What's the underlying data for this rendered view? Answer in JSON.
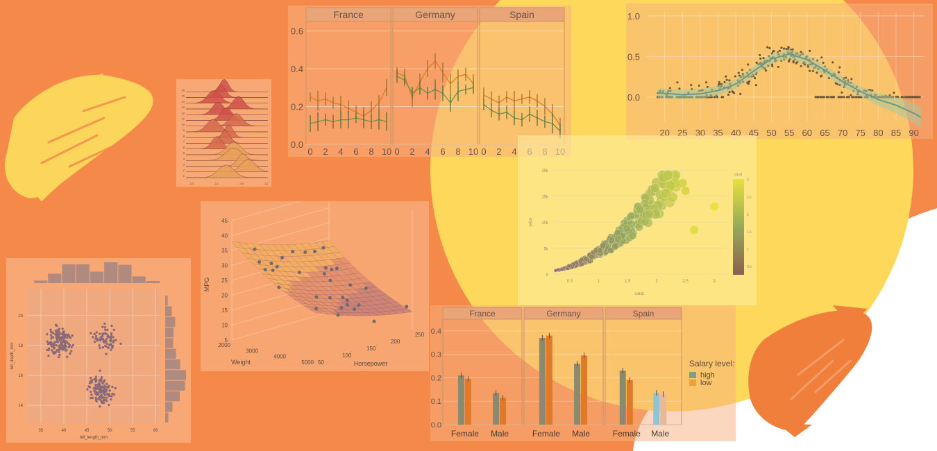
{
  "colors": {
    "background": "#f5894a",
    "big_circle": "#fdd85a",
    "white_corner": "#ffffff",
    "brush_yellow": "#fbd65a",
    "brush_orange": "#ef7f3a",
    "panel_tint": "#f9b98c",
    "green": "#6e8f4a",
    "orange_line": "#e07a28",
    "gray_point": "#6f6a66"
  },
  "chart_data": [
    {
      "id": "line_panels",
      "type": "line",
      "facets": [
        "France",
        "Germany",
        "Spain"
      ],
      "x_ticks": [
        0,
        2,
        4,
        6,
        8,
        10
      ],
      "y_ticks": [
        "0.0",
        "0.2",
        "0.4",
        "0.6"
      ],
      "ylim": [
        0,
        0.65
      ],
      "series": [
        {
          "color": "orange",
          "values": [
            [
              0.25,
              0.23,
              0.24,
              0.22,
              0.21,
              0.19,
              0.17,
              0.15,
              0.18,
              0.22,
              0.3
            ],
            [
              0.38,
              0.36,
              0.25,
              0.33,
              0.4,
              0.44,
              0.38,
              0.32,
              0.36,
              0.37,
              0.32
            ],
            [
              0.26,
              0.24,
              0.22,
              0.25,
              0.23,
              0.24,
              0.25,
              0.23,
              0.2,
              0.16,
              0.1
            ]
          ]
        },
        {
          "color": "green",
          "values": [
            [
              0.11,
              0.12,
              0.13,
              0.12,
              0.13,
              0.13,
              0.14,
              0.13,
              0.12,
              0.13,
              0.12
            ],
            [
              0.36,
              0.34,
              0.27,
              0.3,
              0.27,
              0.29,
              0.27,
              0.22,
              0.28,
              0.29,
              0.3
            ],
            [
              0.21,
              0.18,
              0.16,
              0.17,
              0.14,
              0.13,
              0.16,
              0.14,
              0.12,
              0.11,
              0.07
            ]
          ]
        }
      ]
    },
    {
      "id": "smooth_scatter",
      "type": "scatter",
      "x_ticks": [
        20,
        25,
        30,
        35,
        40,
        45,
        50,
        55,
        60,
        65,
        70,
        75,
        80,
        85,
        90
      ],
      "y_ticks": [
        "0.0",
        "0.5",
        "1.0"
      ],
      "xlim": [
        15,
        93
      ],
      "ylim": [
        -0.3,
        1.05
      ],
      "smooth": [
        [
          18,
          0.05
        ],
        [
          25,
          0.03
        ],
        [
          30,
          0.04
        ],
        [
          35,
          0.08
        ],
        [
          40,
          0.16
        ],
        [
          45,
          0.32
        ],
        [
          50,
          0.47
        ],
        [
          55,
          0.53
        ],
        [
          60,
          0.46
        ],
        [
          65,
          0.33
        ],
        [
          70,
          0.19
        ],
        [
          75,
          0.07
        ],
        [
          80,
          -0.03
        ],
        [
          85,
          -0.1
        ],
        [
          90,
          -0.2
        ],
        [
          92,
          -0.25
        ]
      ]
    },
    {
      "id": "diamonds_bubble",
      "type": "scatter",
      "x_ticks": [
        "0.5",
        "1",
        "1.5",
        "2",
        "2.5",
        "3"
      ],
      "y_ticks": [
        "0",
        "5k",
        "10k",
        "15k",
        "20k"
      ],
      "xlabel": "carat",
      "ylabel": "price",
      "legend_title": "carat",
      "legend_ticks": [
        "3",
        "2.5",
        "2",
        "1.5",
        "1",
        "0.5"
      ],
      "xlim": [
        0.2,
        3.2
      ],
      "ylim": [
        0,
        20000
      ]
    },
    {
      "id": "grouped_bars",
      "type": "bar",
      "facets": [
        "France",
        "Germany",
        "Spain"
      ],
      "categories": [
        "Female",
        "Male"
      ],
      "y_ticks": [
        "0.0",
        "0.1",
        "0.2",
        "0.3",
        "0.4"
      ],
      "ylim": [
        0,
        0.45
      ],
      "legend_title": "Salary level:",
      "series": [
        {
          "name": "high",
          "values": [
            [
              0.21,
              0.135
            ],
            [
              0.37,
              0.26
            ],
            [
              0.23,
              0.135
            ]
          ]
        },
        {
          "name": "low",
          "values": [
            [
              0.195,
              0.115
            ],
            [
              0.38,
              0.295
            ],
            [
              0.19,
              0.13
            ]
          ]
        }
      ]
    },
    {
      "id": "surface_3d",
      "type": "scatter",
      "xlabel": "Weight",
      "ylabel": "Horsepower",
      "zlabel": "MPG",
      "weight_ticks": [
        "2000",
        "3000",
        "4000",
        "5000"
      ],
      "hp_ticks": [
        "50",
        "100",
        "150",
        "200",
        "250"
      ],
      "mpg_ticks": [
        "5",
        "10",
        "15",
        "20",
        "25",
        "30",
        "35",
        "40",
        "45"
      ]
    },
    {
      "id": "penguin_joint",
      "type": "scatter",
      "xlabel": "bill_length_mm",
      "ylabel": "bill_depth_mm",
      "x_ticks": [
        "35",
        "40",
        "45",
        "50",
        "55",
        "60"
      ],
      "y_ticks": [
        "14",
        "16",
        "18",
        "20"
      ],
      "xlim": [
        32,
        61
      ],
      "ylim": [
        12.8,
        21.8
      ],
      "top_hist": [
        0.12,
        0.45,
        0.9,
        0.9,
        0.55,
        1.0,
        0.88,
        0.32,
        0.1
      ],
      "right_hist": [
        0.12,
        0.32,
        0.48,
        0.4,
        0.38,
        0.52,
        0.72,
        1.0,
        0.95,
        0.7,
        0.35,
        0.15
      ]
    },
    {
      "id": "ridgeline",
      "type": "area",
      "x_ticks": [
        "2.0",
        "2.4",
        "2.8",
        "3.2"
      ],
      "row_labels": [
        "16",
        "15",
        "14",
        "13",
        "12",
        "11",
        "10",
        "9",
        "8",
        "7",
        "6",
        "5",
        "4",
        "3",
        "2",
        "1"
      ]
    }
  ]
}
